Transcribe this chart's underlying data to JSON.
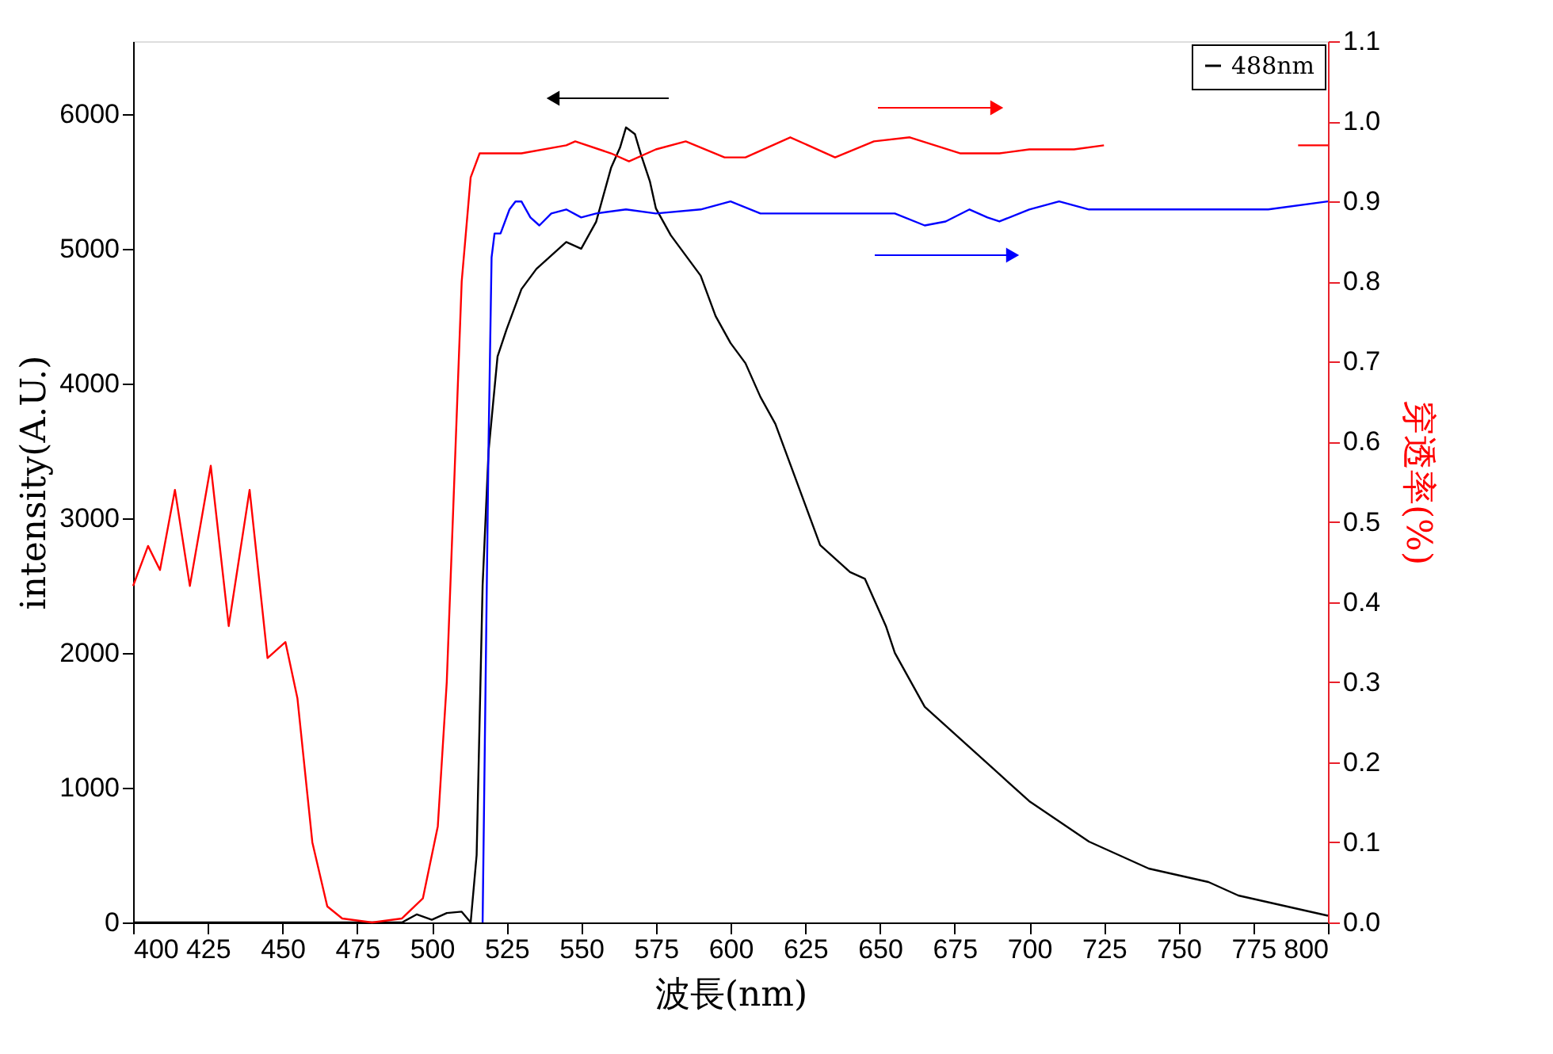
{
  "chart_data": {
    "type": "line",
    "xlabel": "波長(nm)",
    "ylabel": "intensity(A.U.)",
    "y2label": "穿透率(%)",
    "xlim": [
      400,
      800
    ],
    "xticks": [
      400,
      425,
      450,
      475,
      500,
      525,
      550,
      575,
      600,
      625,
      650,
      675,
      700,
      725,
      750,
      775,
      800
    ],
    "ylim": [
      0,
      6540
    ],
    "yticks": [
      0,
      1000,
      2000,
      3000,
      4000,
      5000,
      6000
    ],
    "y2lim": [
      0,
      1.1
    ],
    "y2ticks": [
      {
        "value": 0,
        "label": "0.0"
      },
      0.1,
      0.2,
      0.3,
      0.4,
      0.5,
      0.6,
      0.7,
      0.8,
      0.9,
      {
        "value": 1,
        "label": "1.0"
      },
      1.1
    ],
    "legend": "top right",
    "grid": false,
    "series": [
      {
        "name": "488nm",
        "color": "#000000",
        "x": [
          400,
          450,
          480,
          490,
          495,
          500,
          505,
          510,
          513,
          515,
          517,
          519,
          522,
          525,
          530,
          535,
          540,
          545,
          550,
          555,
          560,
          563,
          565,
          568,
          570,
          573,
          575,
          580,
          585,
          590,
          595,
          600,
          605,
          610,
          615,
          620,
          625,
          630,
          635,
          640,
          645,
          648,
          652,
          655,
          660,
          665,
          670,
          680,
          690,
          700,
          710,
          720,
          730,
          740,
          750,
          760,
          770,
          780,
          790,
          800
        ],
        "values": [
          0,
          0,
          0,
          0,
          60,
          20,
          70,
          80,
          0,
          500,
          2500,
          3500,
          4200,
          4400,
          4700,
          4850,
          4950,
          5050,
          5000,
          5200,
          5600,
          5750,
          5900,
          5850,
          5700,
          5500,
          5300,
          5100,
          4950,
          4800,
          4500,
          4300,
          4150,
          3900,
          3700,
          3400,
          3100,
          2800,
          2700,
          2600,
          2550,
          2400,
          2200,
          2000,
          1800,
          1600,
          1500,
          1300,
          1100,
          900,
          750,
          600,
          500,
          400,
          350,
          300,
          200,
          150,
          100,
          50
        ]
      },
      {
        "color": "#ff0000",
        "axis": "y2",
        "x": [
          400,
          405,
          409,
          414,
          419,
          426,
          432,
          439,
          445,
          451,
          455,
          460,
          465,
          470,
          480,
          490,
          497,
          502,
          505,
          508,
          510,
          513,
          516,
          520,
          530,
          545,
          548,
          560,
          566,
          575,
          585,
          598,
          605,
          620,
          635,
          648,
          660,
          677,
          690,
          700,
          715,
          725,
          730,
          740,
          750,
          760,
          770,
          780,
          790,
          800
        ],
        "values": [
          0.42,
          0.47,
          0.44,
          0.54,
          0.42,
          0.57,
          0.37,
          0.54,
          0.33,
          0.35,
          0.28,
          0.1,
          0.02,
          0.005,
          0,
          0.005,
          0.03,
          0.12,
          0.3,
          0.6,
          0.8,
          0.93,
          0.96,
          0.96,
          0.96,
          0.97,
          0.975,
          0.96,
          0.95,
          0.965,
          0.975,
          0.955,
          0.955,
          0.98,
          0.955,
          0.975,
          0.98,
          0.96,
          0.96,
          0.965,
          0.965,
          0.97,
          null,
          null,
          null,
          null,
          null,
          null,
          0.97,
          0.97
        ]
      },
      {
        "color": "#0000ff",
        "axis": "y2",
        "x": [
          517,
          518,
          519,
          520,
          521,
          523,
          526,
          528,
          530,
          533,
          536,
          540,
          545,
          550,
          555,
          565,
          575,
          590,
          600,
          610,
          625,
          640,
          655,
          665,
          672,
          680,
          686,
          690,
          700,
          710,
          720,
          750,
          780,
          800
        ],
        "values": [
          0,
          0.3,
          0.6,
          0.83,
          0.86,
          0.86,
          0.89,
          0.9,
          0.9,
          0.88,
          0.87,
          0.885,
          0.89,
          0.88,
          0.885,
          0.89,
          0.885,
          0.89,
          0.9,
          0.885,
          0.885,
          0.885,
          0.885,
          0.87,
          0.875,
          0.89,
          0.88,
          0.875,
          0.89,
          0.9,
          0.89,
          0.89,
          0.89,
          0.9
        ]
      }
    ]
  }
}
